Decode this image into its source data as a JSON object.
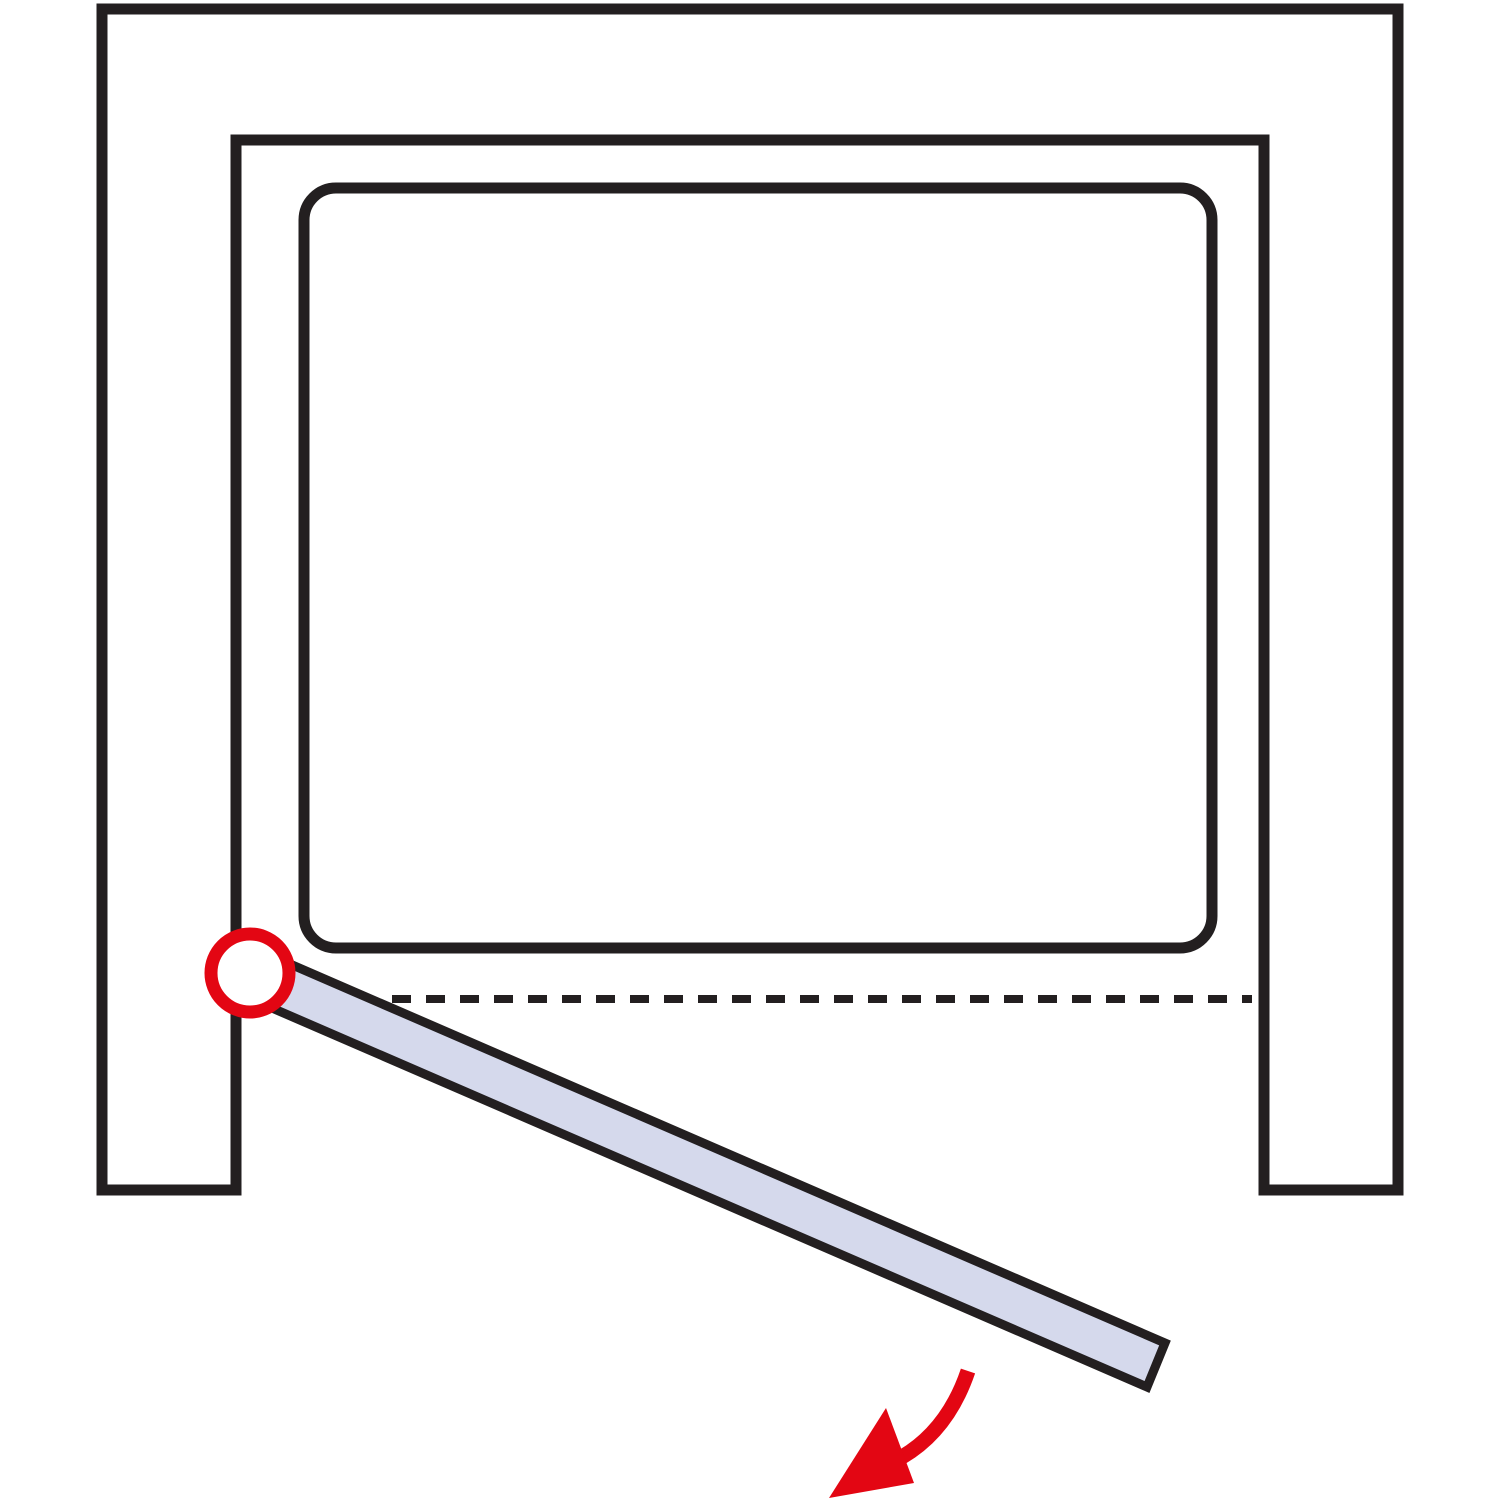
{
  "diagram": {
    "kind": "shower-enclosure-plan",
    "opening": "outward",
    "colors": {
      "outline": "#231f20",
      "background": "#ffffff",
      "door_glass": "#d5d9ec",
      "hinge_accent": "#e30613",
      "swing_arrow": "#e30613"
    },
    "icons": [
      "wall-recess",
      "shower-tray",
      "hinge-pivot",
      "door-panel",
      "swing-arrow",
      "closed-door-line"
    ]
  }
}
